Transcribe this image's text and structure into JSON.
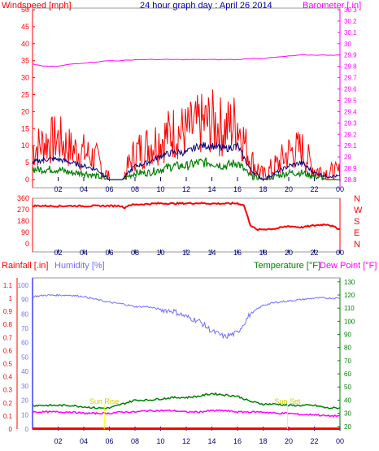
{
  "title": "24 hour graph day : April 26 2014",
  "colors": {
    "wind": "#ff0000",
    "wind_avg": "#000080",
    "wind_green": "#008000",
    "baro": "#ff00ff",
    "dir": "#ff0000",
    "rain": "#ff0000",
    "hum": "#7070ff",
    "temp": "#008000",
    "dew": "#ff00ff",
    "blue_axis": "#0000c0",
    "sun": "#ffff00"
  },
  "x_ticks": [
    "02",
    "04",
    "06",
    "08",
    "10",
    "12",
    "14",
    "16",
    "18",
    "20",
    "22",
    "00"
  ],
  "chart_data": [
    {
      "type": "line",
      "name": "wind-barometer",
      "ylabel_left": "Windspeed [mph]",
      "ylabel_right": "Barometer [.in]",
      "left_ticks": [
        0,
        5,
        10,
        15,
        20,
        25,
        30,
        35,
        40,
        45,
        50
      ],
      "right_ticks": [
        "28.8",
        "28.9",
        "29",
        "29.1",
        "29.2",
        "29.3",
        "29.4",
        "29.5",
        "29.6",
        "29.7",
        "29.8",
        "29.9",
        "30",
        "30.1",
        "30.2",
        "30.3"
      ],
      "ylim_left": [
        0,
        50
      ],
      "ylim_right": [
        28.8,
        30.3
      ],
      "x_hours": [
        0,
        1,
        2,
        3,
        4,
        5,
        6,
        7,
        8,
        9,
        10,
        11,
        12,
        13,
        14,
        15,
        16,
        17,
        18,
        19,
        20,
        21,
        22,
        23,
        24
      ],
      "series": [
        {
          "values": [
            9,
            11,
            12,
            9,
            8,
            6,
            0,
            0,
            8,
            10,
            12,
            14,
            14,
            16,
            17,
            15,
            17,
            6,
            1,
            4,
            8,
            9,
            3,
            2,
            2
          ]
        },
        {
          "values": [
            5,
            6,
            6,
            5,
            4,
            3,
            0,
            0,
            4,
            5,
            7,
            8,
            8,
            10,
            10,
            9,
            10,
            3,
            0,
            2,
            4,
            5,
            2,
            1,
            1
          ]
        },
        {
          "values": [
            3,
            3,
            3,
            2,
            2,
            1,
            0,
            0,
            2,
            2,
            3,
            4,
            4,
            5,
            5,
            4,
            5,
            1,
            0,
            1,
            2,
            2,
            1,
            0,
            0
          ]
        },
        {
          "values": [
            29.82,
            29.8,
            29.8,
            29.82,
            29.83,
            29.84,
            29.85,
            29.85,
            29.86,
            29.86,
            29.86,
            29.86,
            29.86,
            29.86,
            29.86,
            29.86,
            29.86,
            29.87,
            29.87,
            29.88,
            29.89,
            29.9,
            29.9,
            29.9,
            29.9
          ]
        }
      ]
    },
    {
      "type": "line",
      "name": "wind-direction",
      "left_ticks": [
        0,
        90,
        180,
        270,
        360
      ],
      "right_labels": [
        "N",
        "W",
        "S",
        "E",
        "N"
      ],
      "ylim": [
        0,
        360
      ],
      "x_hours": [
        0,
        1,
        2,
        3,
        4,
        5,
        6,
        7,
        7.1,
        7.5,
        8,
        9,
        10,
        11,
        12,
        13,
        14,
        15,
        16,
        16.5,
        17,
        17.5,
        18,
        19,
        20,
        21,
        22,
        23,
        24
      ],
      "values": [
        300,
        300,
        298,
        300,
        298,
        300,
        300,
        300,
        280,
        305,
        310,
        315,
        320,
        318,
        320,
        322,
        318,
        318,
        320,
        305,
        150,
        110,
        115,
        120,
        140,
        130,
        145,
        155,
        115
      ]
    },
    {
      "type": "line",
      "name": "rain-humidity-temp",
      "ylabel_left_1": "Rainfall [.in]",
      "ylabel_left_2": "Humidity [%]",
      "ylabel_right_1": "Temperature [°F]",
      "ylabel_right_2": "Dew Point [°F]",
      "humidity_ticks": [
        0,
        10,
        20,
        30,
        40,
        50,
        60,
        70,
        80,
        90,
        100
      ],
      "rain_ticks": [
        "0",
        "0.1",
        "0.2",
        "0.3",
        "0.4",
        "0.5",
        "0.6",
        "0.7",
        "0.8",
        "0.9",
        "1",
        "1.1"
      ],
      "temp_ticks": [
        20,
        30,
        40,
        50,
        60,
        70,
        80,
        90,
        100,
        110,
        120,
        130
      ],
      "x_hours": [
        0,
        1,
        2,
        3,
        4,
        5,
        6,
        7,
        8,
        9,
        10,
        11,
        12,
        13,
        14,
        15,
        16,
        17,
        18,
        19,
        20,
        21,
        22,
        23,
        24
      ],
      "series": [
        {
          "values": [
            0.01,
            0.01,
            0.01,
            0.01,
            0.01,
            0.01,
            0.01,
            0.01,
            0.01,
            0.01,
            0.01,
            0.01,
            0.01,
            0.01,
            0.01,
            0.01,
            0.01,
            0.01,
            0.01,
            0.01,
            0.01,
            0.01,
            0.01,
            0.01,
            0.01
          ]
        },
        {
          "values": [
            92,
            93,
            93,
            93,
            92,
            90,
            88,
            87,
            85,
            85,
            83,
            82,
            78,
            75,
            68,
            64,
            67,
            80,
            86,
            88,
            89,
            90,
            91,
            91,
            91
          ]
        },
        {
          "values": [
            36,
            36,
            36,
            36,
            35,
            34,
            34,
            37,
            40,
            40,
            41,
            42,
            42,
            43,
            45,
            44,
            43,
            39,
            37,
            37,
            36,
            36,
            36,
            34,
            34
          ]
        },
        {
          "values": [
            31,
            31,
            31,
            31,
            30,
            30,
            30,
            31,
            31,
            32,
            32,
            32,
            31,
            31,
            32,
            32,
            31,
            31,
            31,
            30,
            30,
            29,
            29,
            28,
            28
          ]
        }
      ],
      "annotations": [
        "Sun Rise",
        "Sun Set"
      ]
    }
  ]
}
